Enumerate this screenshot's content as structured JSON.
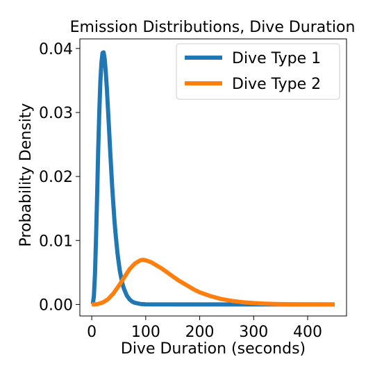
{
  "chart_data": {
    "type": "line",
    "title": "Emission Distributions, Dive Duration",
    "xlabel": "Dive Duration (seconds)",
    "ylabel": "Probability Density",
    "xlim": [
      -22,
      472
    ],
    "ylim": [
      -0.0018,
      0.0415
    ],
    "xticks": [
      0,
      100,
      200,
      300,
      400
    ],
    "xtick_labels": [
      "0",
      "100",
      "200",
      "300",
      "400"
    ],
    "yticks": [
      0.0,
      0.01,
      0.02,
      0.03,
      0.04
    ],
    "ytick_labels": [
      "0.00",
      "0.01",
      "0.02",
      "0.03",
      "0.04"
    ],
    "grid": false,
    "legend_position": "top-right",
    "series": [
      {
        "name": "Dive Type 1",
        "color": "#1f77b4",
        "x": [
          0,
          2,
          4,
          6,
          8,
          10,
          12,
          14,
          16,
          18,
          20,
          22,
          24,
          26,
          28,
          30,
          32,
          34,
          36,
          38,
          40,
          42,
          44,
          46,
          48,
          50,
          52,
          54,
          56,
          58,
          60,
          65,
          70,
          75,
          80,
          90,
          100,
          150,
          200,
          250,
          300,
          350,
          400,
          450
        ],
        "y": [
          0.0,
          7e-05,
          0.0013,
          0.0048,
          0.0104,
          0.0172,
          0.0241,
          0.0301,
          0.0348,
          0.0378,
          0.0393,
          0.0394,
          0.0383,
          0.0363,
          0.0337,
          0.0307,
          0.0275,
          0.0243,
          0.0212,
          0.0183,
          0.0157,
          0.0133,
          0.0112,
          0.0094,
          0.0078,
          0.0065,
          0.0053,
          0.0044,
          0.0036,
          0.0029,
          0.0024,
          0.0014,
          0.0008,
          0.00045,
          0.00025,
          8e-05,
          2e-05,
          0.0,
          0.0,
          0.0,
          0.0,
          0.0,
          0.0,
          0.0
        ]
      },
      {
        "name": "Dive Type 2",
        "color": "#ff7f0e",
        "x": [
          0,
          10,
          20,
          30,
          40,
          50,
          60,
          70,
          80,
          90,
          95,
          100,
          110,
          120,
          130,
          140,
          150,
          160,
          170,
          180,
          190,
          200,
          220,
          240,
          260,
          280,
          300,
          320,
          340,
          360,
          380,
          400,
          420,
          450
        ],
        "y": [
          0.0,
          4e-05,
          0.00028,
          0.0008,
          0.0017,
          0.0029,
          0.0042,
          0.0055,
          0.0064,
          0.0069,
          0.00698,
          0.0069,
          0.0066,
          0.0061,
          0.0056,
          0.005,
          0.0044,
          0.0038,
          0.0033,
          0.0028,
          0.0023,
          0.0019,
          0.0013,
          0.00085,
          0.00055,
          0.00035,
          0.00022,
          0.00013,
          8e-05,
          5e-05,
          3e-05,
          2e-05,
          1e-05,
          0.0
        ]
      }
    ]
  }
}
